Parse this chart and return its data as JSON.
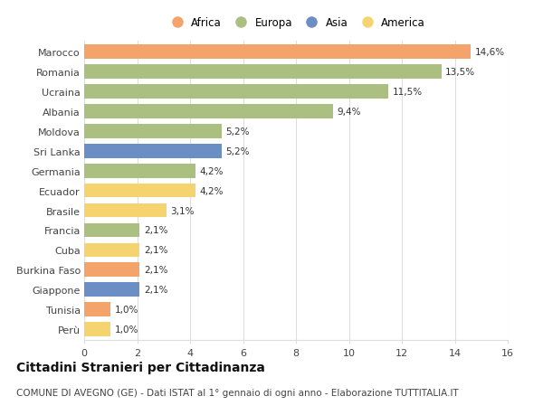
{
  "countries": [
    "Marocco",
    "Romania",
    "Ucraina",
    "Albania",
    "Moldova",
    "Sri Lanka",
    "Germania",
    "Ecuador",
    "Brasile",
    "Francia",
    "Cuba",
    "Burkina Faso",
    "Giappone",
    "Tunisia",
    "Perù"
  ],
  "values": [
    14.6,
    13.5,
    11.5,
    9.4,
    5.2,
    5.2,
    4.2,
    4.2,
    3.1,
    2.1,
    2.1,
    2.1,
    2.1,
    1.0,
    1.0
  ],
  "labels": [
    "14,6%",
    "13,5%",
    "11,5%",
    "9,4%",
    "5,2%",
    "5,2%",
    "4,2%",
    "4,2%",
    "3,1%",
    "2,1%",
    "2,1%",
    "2,1%",
    "2,1%",
    "1,0%",
    "1,0%"
  ],
  "continents": [
    "Africa",
    "Europa",
    "Europa",
    "Europa",
    "Europa",
    "Asia",
    "Europa",
    "America",
    "America",
    "Europa",
    "America",
    "Africa",
    "Asia",
    "Africa",
    "America"
  ],
  "continent_colors": {
    "Africa": "#F4A46A",
    "Europa": "#AABF80",
    "Asia": "#6B8EC4",
    "America": "#F5D470"
  },
  "legend_order": [
    "Africa",
    "Europa",
    "Asia",
    "America"
  ],
  "title": "Cittadini Stranieri per Cittadinanza",
  "subtitle": "COMUNE DI AVEGNO (GE) - Dati ISTAT al 1° gennaio di ogni anno - Elaborazione TUTTITALIA.IT",
  "xlim": [
    0,
    16
  ],
  "xticks": [
    0,
    2,
    4,
    6,
    8,
    10,
    12,
    14,
    16
  ],
  "background_color": "#ffffff",
  "grid_color": "#dddddd",
  "bar_height": 0.72,
  "title_fontsize": 10,
  "subtitle_fontsize": 7.5,
  "label_fontsize": 7.5,
  "tick_fontsize": 8,
  "legend_fontsize": 8.5
}
